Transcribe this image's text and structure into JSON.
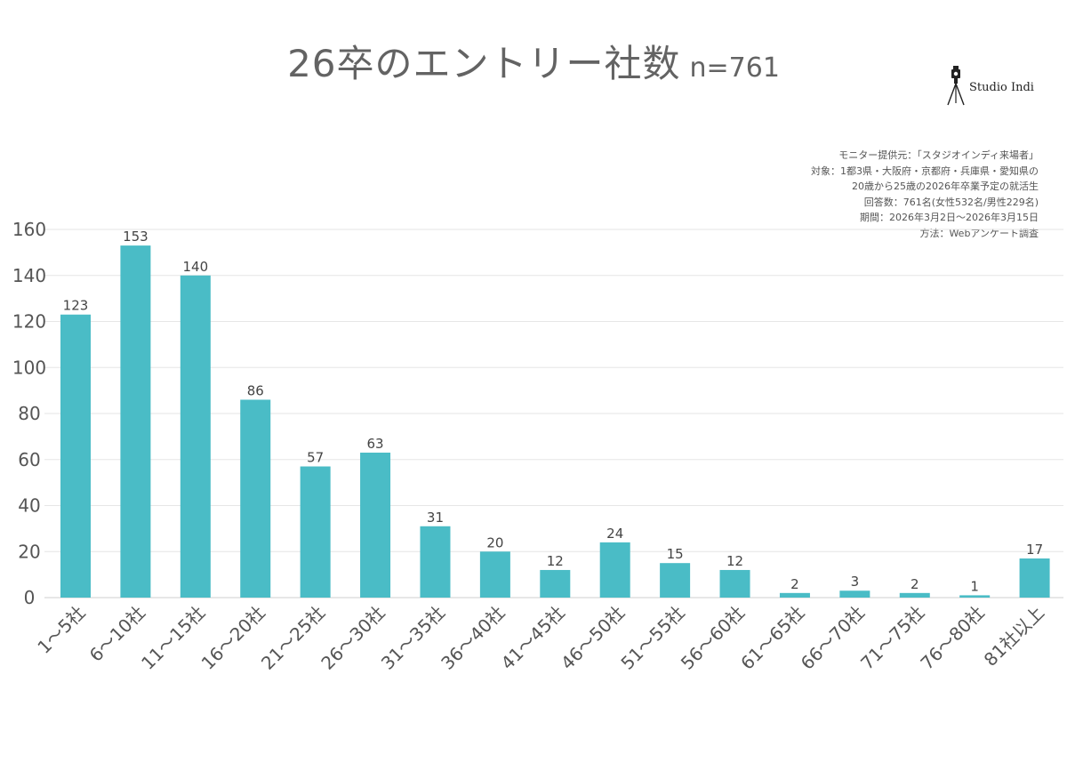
{
  "header": {
    "title": "26卒のエントリー社数",
    "sample_size": "n=761"
  },
  "logo": {
    "text": "Studio Indi",
    "icon": "camera-tripod-icon"
  },
  "notes": [
    "モニター提供元：「スタジオインディ来場者」",
    "対象：1都3県・大阪府・京都府・兵庫県・愛知県の",
    "20歳から25歳の2026年卒業予定の就活生",
    "回答数：761名(女性532名/男性229名)",
    "期間：2026年3月2日〜2026年3月15日",
    "方法：Webアンケート調査"
  ],
  "colors": {
    "bar": "#4abcc6",
    "grid": "#e6e6e6",
    "axis": "#cfcfcf"
  },
  "chart_data": {
    "type": "bar",
    "categories": [
      "1〜5社",
      "6〜10社",
      "11〜15社",
      "16〜20社",
      "21〜25社",
      "26〜30社",
      "31〜35社",
      "36〜40社",
      "41〜45社",
      "46〜50社",
      "51〜55社",
      "56〜60社",
      "61〜65社",
      "66〜70社",
      "71〜75社",
      "76〜80社",
      "81社以上"
    ],
    "values": [
      123,
      153,
      140,
      86,
      57,
      63,
      31,
      20,
      12,
      24,
      15,
      12,
      2,
      3,
      2,
      1,
      17
    ],
    "yticks": [
      0,
      20,
      40,
      60,
      80,
      100,
      120,
      140,
      160
    ],
    "ylim": [
      0,
      160
    ],
    "grid": true,
    "data_labels": true
  }
}
